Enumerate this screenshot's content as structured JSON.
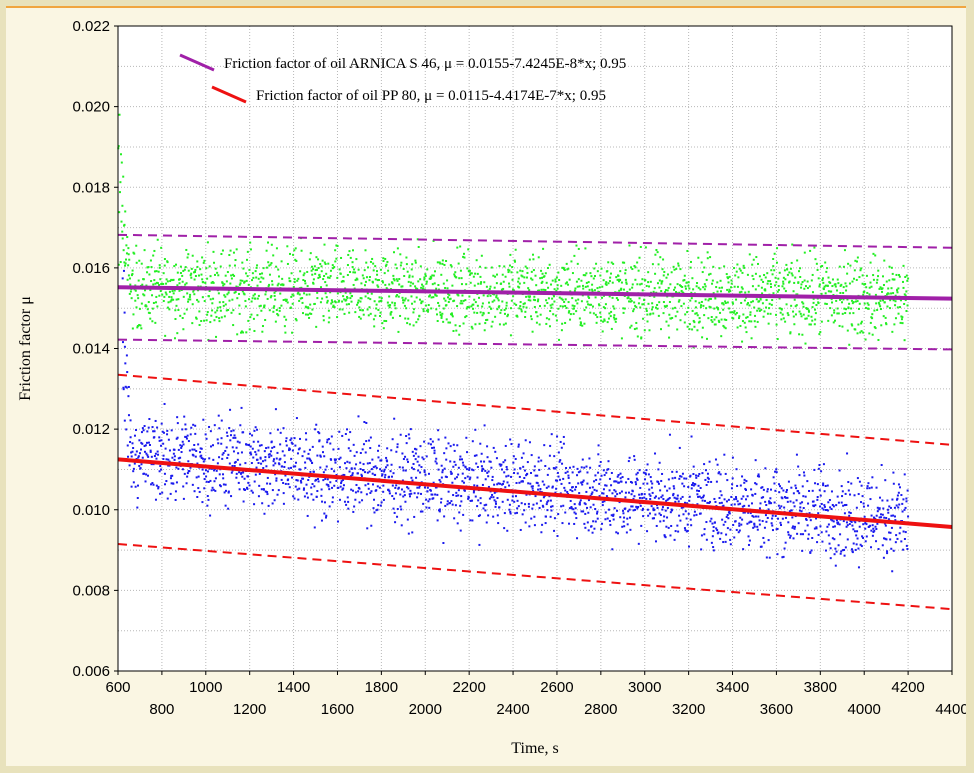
{
  "chart_data": {
    "type": "scatter",
    "xlabel": "Time, s",
    "ylabel": "Friction factor  μ",
    "xlim": [
      600,
      4400
    ],
    "ylim": [
      0.006,
      0.022
    ],
    "x_ticks_upper": [
      "600",
      "1000",
      "1400",
      "1800",
      "2200",
      "2600",
      "3000",
      "3400",
      "3800",
      "4200"
    ],
    "x_ticks_lower": [
      "800",
      "1200",
      "1600",
      "2000",
      "2400",
      "2800",
      "3200",
      "3600",
      "4000",
      "4400"
    ],
    "y_ticks": [
      "0.006",
      "0.008",
      "0.010",
      "0.012",
      "0.014",
      "0.016",
      "0.018",
      "0.020",
      "0.022"
    ],
    "grid": true,
    "legend_position": "top-center",
    "series": [
      {
        "name": "Friction factor of oil ARNICA S 46, μ = 0.0155-7.4245E-8*x; 0.95",
        "scatter_color": "#22ee22",
        "line_color": "#a020a8",
        "x_range": [
          600,
          4200
        ],
        "center": 0.0155,
        "spread": 0.0009,
        "fit": {
          "intercept": 0.0155,
          "slope": -7.4245e-08
        },
        "band_offset": 0.0013
      },
      {
        "name": "Friction factor of oil PP 80,  μ = 0.0115-4.4174E-7*x; 0.95",
        "scatter_color": "#1a1aee",
        "line_color": "#ee1111",
        "x_range": [
          620,
          4200
        ],
        "center": 0.0112,
        "spread": 0.001,
        "fit": {
          "intercept": 0.0115,
          "slope": -4.4174e-07
        },
        "band_offset": 0.0021
      }
    ]
  }
}
